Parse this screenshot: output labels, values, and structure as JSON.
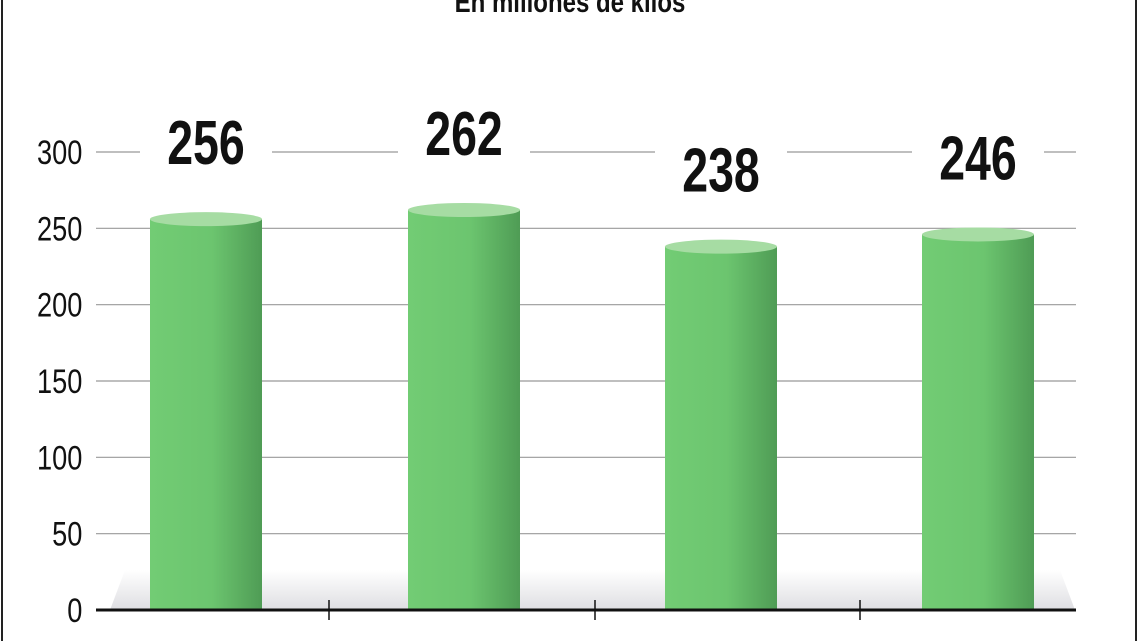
{
  "chart_data": {
    "type": "bar",
    "subtitle": "En millones de kilos",
    "categories": [
      "",
      "",
      "",
      ""
    ],
    "values": [
      256,
      262,
      238,
      246
    ],
    "data_labels": [
      "256",
      "262",
      "238",
      "246"
    ],
    "ylim": [
      0,
      300
    ],
    "yticks": [
      "0",
      "50",
      "100",
      "150",
      "200",
      "250",
      "300"
    ],
    "grid": true,
    "colors": {
      "bar": "#6cc56f",
      "bar_dark": "#4f9c55",
      "bar_top": "#a6dca3",
      "grid": "#999999",
      "axis": "#111111"
    }
  }
}
